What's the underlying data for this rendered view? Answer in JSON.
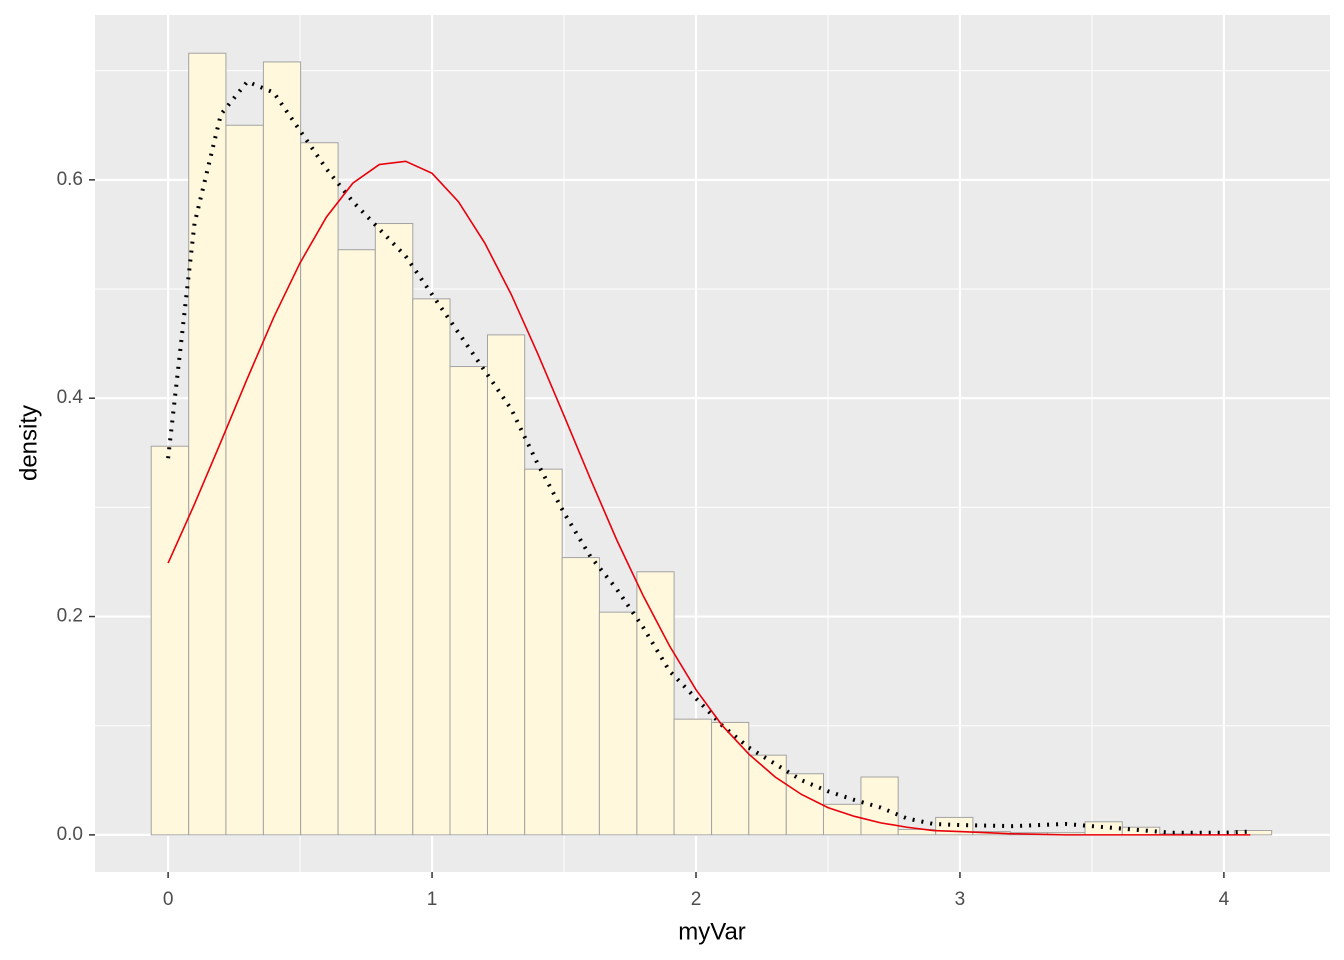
{
  "chart_data": {
    "type": "histogram",
    "x_label": "myVar",
    "y_label": "density",
    "bins": [
      -0.064,
      0.078,
      0.219,
      0.361,
      0.502,
      0.644,
      0.785,
      0.927,
      1.068,
      1.21,
      1.351,
      1.493,
      1.634,
      1.776,
      1.917,
      2.059,
      2.2,
      2.342,
      2.483,
      2.625,
      2.766,
      2.908,
      3.049,
      3.191,
      3.332,
      3.474,
      3.615,
      3.757,
      3.898,
      4.04,
      4.181
    ],
    "values": [
      0.356,
      0.716,
      0.65,
      0.708,
      0.634,
      0.536,
      0.56,
      0.491,
      0.429,
      0.458,
      0.335,
      0.254,
      0.204,
      0.241,
      0.106,
      0.103,
      0.073,
      0.056,
      0.028,
      0.053,
      0.005,
      0.016,
      0.003,
      0.002,
      0.002,
      0.012,
      0.007,
      0.001,
      0,
      0.004
    ],
    "color": "#fff8dc",
    "edge_color": "#a3a3a3",
    "lines": [
      {
        "color": "#000000",
        "style": "dotted",
        "x": [
          0,
          0.1,
          0.2,
          0.3,
          0.4,
          0.5,
          0.6,
          0.7,
          0.8,
          0.9,
          1.0,
          1.1,
          1.2,
          1.3,
          1.4,
          1.5,
          1.6,
          1.7,
          1.8,
          1.9,
          2.0,
          2.1,
          2.2,
          2.3,
          2.4,
          2.5,
          2.6,
          2.7,
          2.8,
          2.9,
          3.0,
          3.2,
          3.4,
          3.6,
          3.8,
          4.0,
          4.1
        ],
        "values": [
          0.345,
          0.56,
          0.66,
          0.69,
          0.68,
          0.645,
          0.61,
          0.58,
          0.555,
          0.53,
          0.495,
          0.46,
          0.425,
          0.39,
          0.34,
          0.295,
          0.255,
          0.225,
          0.19,
          0.15,
          0.125,
          0.1,
          0.08,
          0.065,
          0.05,
          0.04,
          0.032,
          0.025,
          0.015,
          0.01,
          0.009,
          0.008,
          0.01,
          0.006,
          0.002,
          0.002,
          0.003
        ]
      },
      {
        "color": "#e8000b",
        "style": "solid",
        "x": [
          0,
          0.1,
          0.2,
          0.3,
          0.4,
          0.5,
          0.6,
          0.7,
          0.8,
          0.9,
          1.0,
          1.1,
          1.2,
          1.3,
          1.4,
          1.5,
          1.6,
          1.7,
          1.8,
          1.9,
          2.0,
          2.1,
          2.2,
          2.3,
          2.4,
          2.5,
          2.6,
          2.7,
          2.8,
          2.9,
          3.0,
          3.2,
          3.4,
          3.6,
          3.8,
          4.0,
          4.1
        ],
        "values": [
          0.249,
          0.303,
          0.36,
          0.418,
          0.474,
          0.524,
          0.566,
          0.597,
          0.614,
          0.617,
          0.606,
          0.58,
          0.542,
          0.495,
          0.441,
          0.384,
          0.326,
          0.27,
          0.219,
          0.173,
          0.133,
          0.1,
          0.074,
          0.053,
          0.037,
          0.025,
          0.017,
          0.011,
          0.007,
          0.004,
          0.003,
          0.001,
          0,
          0,
          0,
          0,
          0
        ]
      }
    ],
    "xlim": [
      -0.277,
      4.402
    ],
    "ylim": [
      -0.034,
      0.751
    ],
    "xticks": [
      0,
      1,
      2,
      3,
      4
    ],
    "yticks": [
      {
        "value": 0,
        "label": "0.0"
      },
      0.2,
      0.4,
      0.6
    ],
    "grid": true,
    "background": "#ebebeb"
  }
}
